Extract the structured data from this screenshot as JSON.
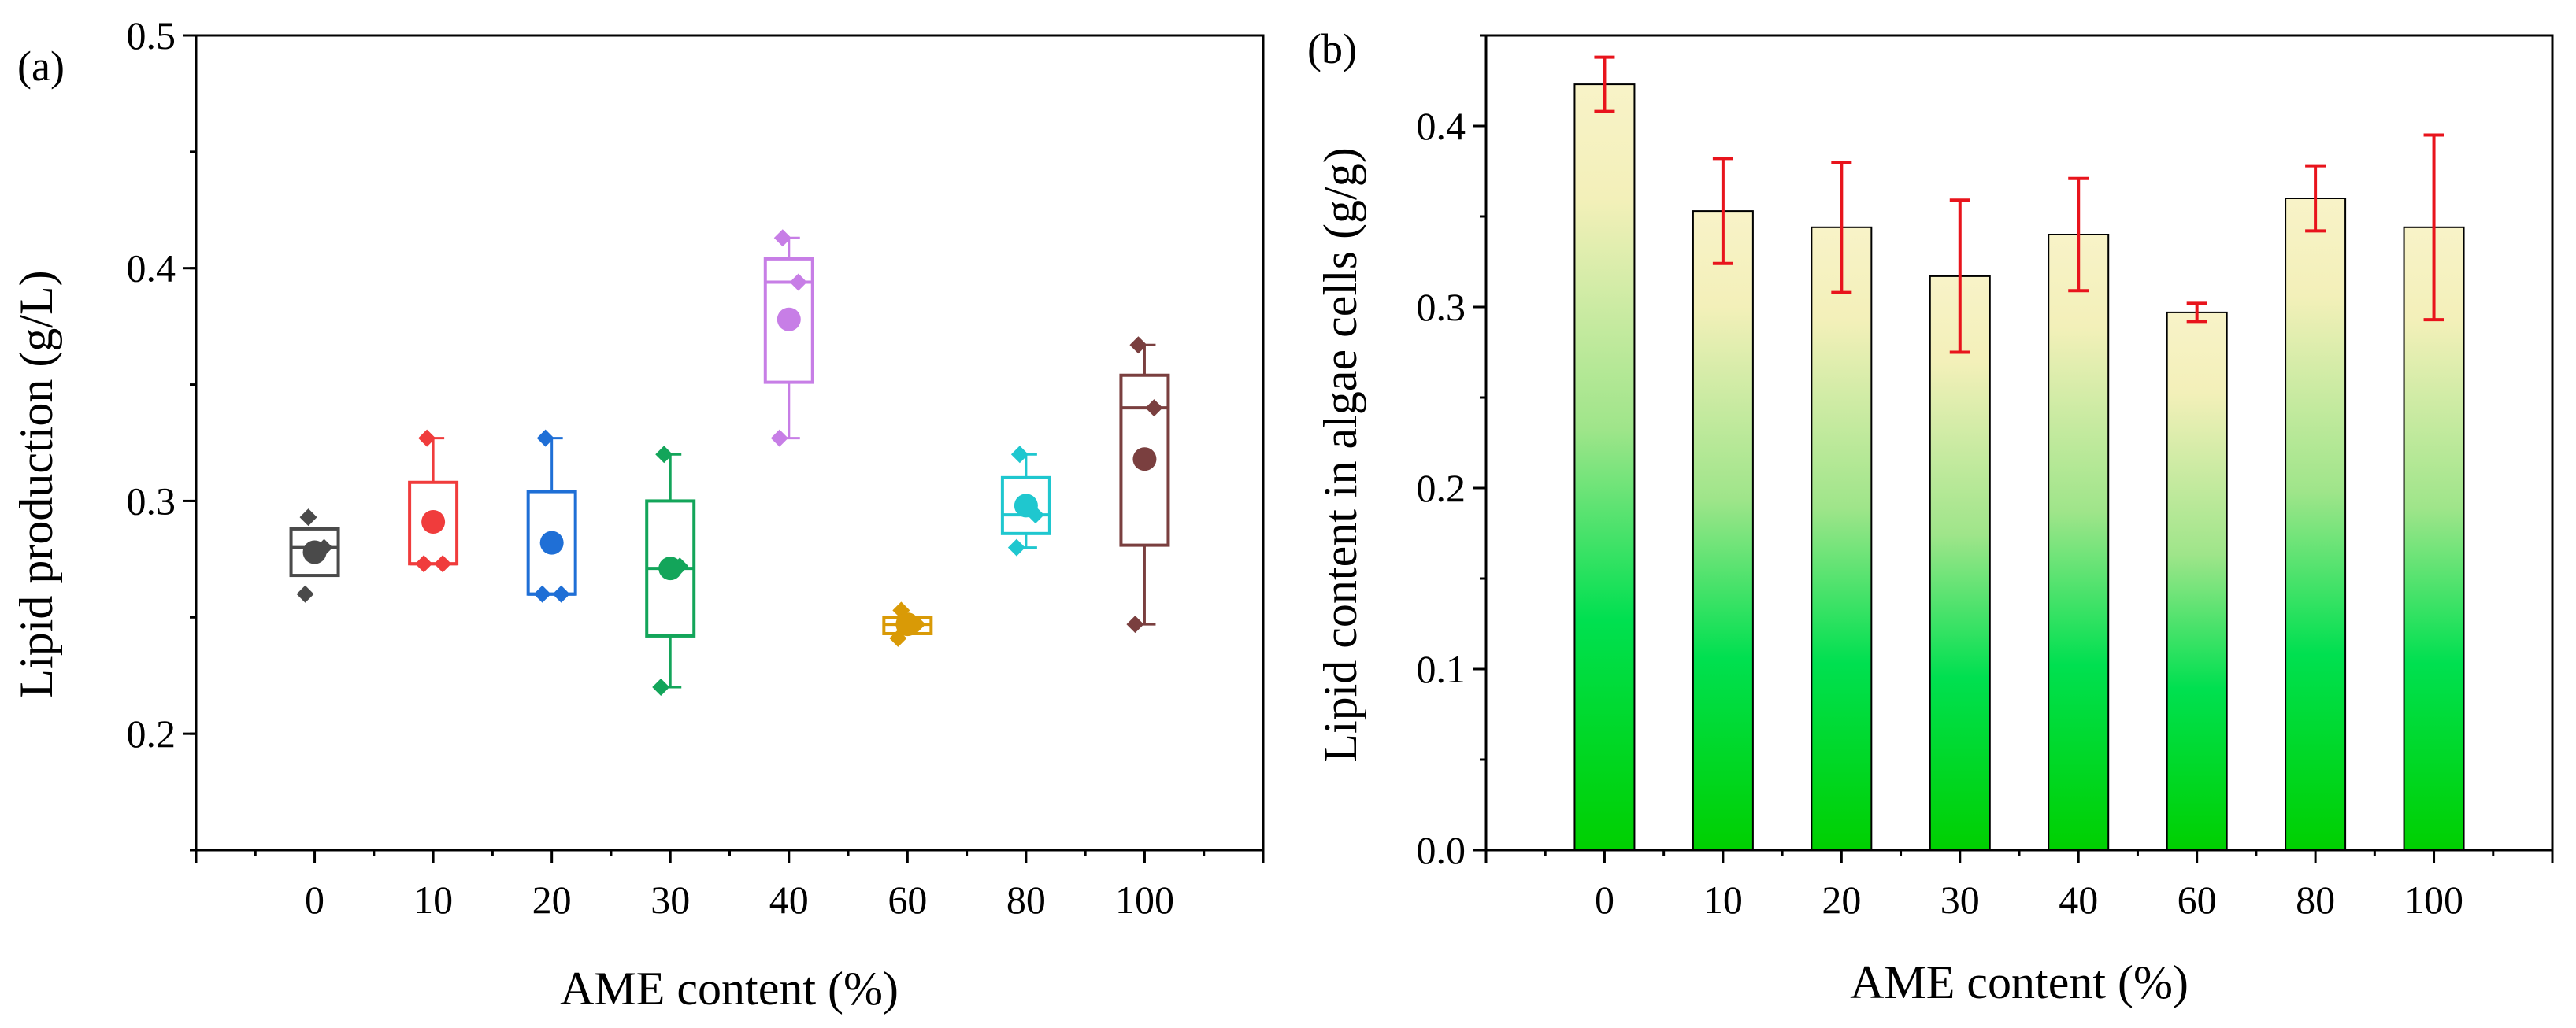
{
  "chart_data": [
    {
      "type": "box",
      "panel_label": "(a)",
      "xlabel": "AME content (%)",
      "ylabel": "Lipid production (g/L)",
      "categories": [
        "0",
        "10",
        "20",
        "30",
        "40",
        "60",
        "80",
        "100"
      ],
      "ylim": [
        0.15,
        0.5
      ],
      "yticks": [
        "0.2",
        "0.3",
        "0.4",
        "0.5"
      ],
      "ytick_values": [
        0.2,
        0.3,
        0.4,
        0.5
      ],
      "grid": false,
      "colors": [
        "#4a4a4a",
        "#f03c3c",
        "#1f6fd6",
        "#13a55a",
        "#c77ee6",
        "#d99a06",
        "#1fc7cf",
        "#7a3f3f"
      ],
      "series": [
        {
          "q1": 0.268,
          "q3": 0.288,
          "median": 0.28,
          "wmin": 0.268,
          "wmax": 0.288,
          "mean": 0.278,
          "points": [
            0.293,
            0.28,
            0.26
          ]
        },
        {
          "q1": 0.273,
          "q3": 0.308,
          "median": 0.273,
          "wmin": 0.273,
          "wmax": 0.327,
          "mean": 0.291,
          "points": [
            0.327,
            0.273,
            0.273
          ]
        },
        {
          "q1": 0.26,
          "q3": 0.304,
          "median": 0.26,
          "wmin": 0.26,
          "wmax": 0.327,
          "mean": 0.282,
          "points": [
            0.327,
            0.26,
            0.26
          ]
        },
        {
          "q1": 0.242,
          "q3": 0.3,
          "median": 0.271,
          "wmin": 0.22,
          "wmax": 0.32,
          "mean": 0.271,
          "points": [
            0.32,
            0.272,
            0.22
          ]
        },
        {
          "q1": 0.351,
          "q3": 0.404,
          "median": 0.394,
          "wmin": 0.327,
          "wmax": 0.413,
          "mean": 0.378,
          "points": [
            0.413,
            0.394,
            0.327
          ]
        },
        {
          "q1": 0.243,
          "q3": 0.25,
          "median": 0.247,
          "wmin": 0.243,
          "wmax": 0.25,
          "mean": 0.247,
          "points": [
            0.253,
            0.247,
            0.241
          ]
        },
        {
          "q1": 0.286,
          "q3": 0.31,
          "median": 0.294,
          "wmin": 0.28,
          "wmax": 0.32,
          "mean": 0.298,
          "points": [
            0.32,
            0.294,
            0.28
          ]
        },
        {
          "q1": 0.281,
          "q3": 0.354,
          "median": 0.34,
          "wmin": 0.247,
          "wmax": 0.367,
          "mean": 0.318,
          "points": [
            0.367,
            0.34,
            0.247
          ]
        }
      ]
    },
    {
      "type": "bar",
      "panel_label": "(b)",
      "xlabel": "AME content (%)",
      "ylabel": "Lipid content in algae cells (g/g)",
      "categories": [
        "0",
        "10",
        "20",
        "30",
        "40",
        "60",
        "80",
        "100"
      ],
      "values": [
        0.423,
        0.353,
        0.344,
        0.317,
        0.34,
        0.297,
        0.36,
        0.344
      ],
      "errors": [
        0.015,
        0.029,
        0.036,
        0.042,
        0.031,
        0.005,
        0.018,
        0.051
      ],
      "ylim": [
        0.0,
        0.45
      ],
      "yticks": [
        "0.0",
        "0.1",
        "0.2",
        "0.3",
        "0.4"
      ],
      "ytick_values": [
        0.0,
        0.1,
        0.2,
        0.3,
        0.4
      ],
      "grid": false,
      "bar_gradient": [
        "#00d000",
        "#00e050",
        "#9fe58a",
        "#f3f0b9",
        "#f8f3c8"
      ],
      "error_color": "#e8141c"
    }
  ]
}
